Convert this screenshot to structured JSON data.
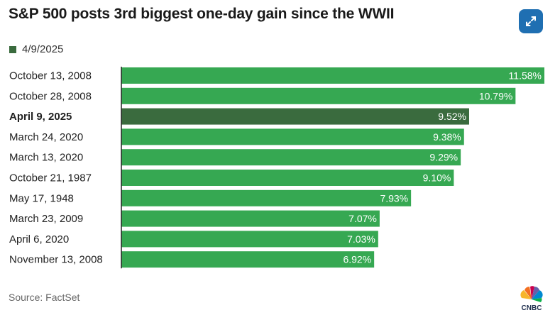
{
  "title": "S&P 500 posts 3rd biggest one-day gain since the WWII",
  "legend": {
    "label": "4/9/2025"
  },
  "source": "Source: FactSet",
  "logo_text": "CNBC",
  "icons": {
    "expand": "expand-arrows-icon",
    "logo": "cnbc-peacock-logo"
  },
  "colors": {
    "bar": "#36a852",
    "highlight": "#3a6b3e",
    "axis": "#222222",
    "label_text": "#ffffff",
    "expand_bg": "#1f6fb2"
  },
  "chart_data": {
    "type": "bar",
    "orientation": "horizontal",
    "title": "S&P 500 posts 3rd biggest one-day gain since the WWII",
    "categories": [
      "October 13, 2008",
      "October 28, 2008",
      "April 9, 2025",
      "March 24, 2020",
      "March 13, 2020",
      "October 21, 1987",
      "May 17, 1948",
      "March 23, 2009",
      "April 6, 2020",
      "November 13, 2008"
    ],
    "values": [
      11.58,
      10.79,
      9.52,
      9.38,
      9.29,
      9.1,
      7.93,
      7.07,
      7.03,
      6.92
    ],
    "value_labels": [
      "11.58%",
      "10.79%",
      "9.52%",
      "9.38%",
      "9.29%",
      "9.10%",
      "7.93%",
      "7.07%",
      "7.03%",
      "6.92%"
    ],
    "highlight_index": 2,
    "xlim": [
      0,
      11.58
    ],
    "grid": false,
    "legend_position": "top-left"
  }
}
